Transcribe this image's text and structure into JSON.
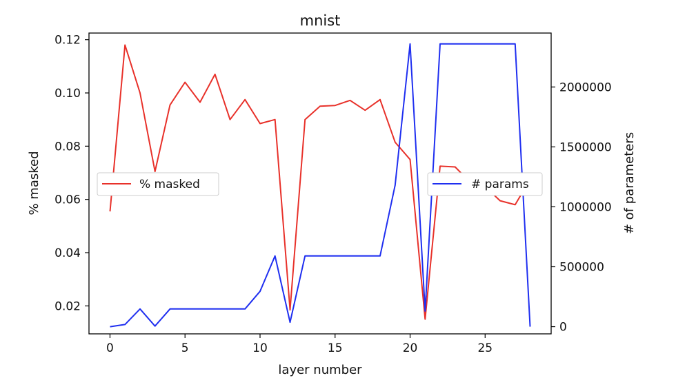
{
  "chart_data": {
    "type": "line",
    "title": "mnist",
    "xlabel": "layer number",
    "ylabel_left": "% masked",
    "ylabel_right": "# of parameters",
    "xlim": [
      -1.4,
      29.4
    ],
    "ylim_left": [
      0.0095,
      0.1225
    ],
    "ylim_right": [
      -60000,
      2450000
    ],
    "x_ticks": [
      0,
      5,
      10,
      15,
      20,
      25
    ],
    "y_left_ticks": [
      "0.02",
      "0.04",
      "0.06",
      "0.08",
      "0.10",
      "0.12"
    ],
    "y_right_ticks": [
      "0",
      "500000",
      "1000000",
      "1500000",
      "2000000"
    ],
    "grid": false,
    "series": [
      {
        "name": "% masked",
        "axis": "left",
        "color": "#e8312a",
        "legend_position": "center-left",
        "x": [
          0,
          1,
          2,
          3,
          4,
          5,
          6,
          7,
          8,
          9,
          10,
          11,
          12,
          13,
          14,
          15,
          16,
          17,
          18,
          19,
          20,
          21,
          22,
          23,
          24,
          25,
          26,
          27,
          28
        ],
        "values": [
          0.0555,
          0.118,
          0.1,
          0.0705,
          0.0955,
          0.104,
          0.0965,
          0.107,
          0.09,
          0.0975,
          0.0885,
          0.09,
          0.0185,
          0.09,
          0.095,
          0.0953,
          0.0972,
          0.0935,
          0.0975,
          0.0815,
          0.075,
          0.015,
          0.0725,
          0.0722,
          0.0665,
          0.0648,
          0.0595,
          0.058,
          0.0675
        ]
      },
      {
        "name": "# params",
        "axis": "right",
        "color": "#1f2ff0",
        "legend_position": "center-right",
        "x": [
          0,
          1,
          2,
          3,
          4,
          5,
          6,
          7,
          8,
          9,
          10,
          11,
          12,
          13,
          14,
          15,
          16,
          17,
          18,
          19,
          20,
          21,
          22,
          23,
          24,
          25,
          26,
          27,
          28
        ],
        "values": [
          0,
          18000,
          148000,
          5000,
          148000,
          148000,
          148000,
          148000,
          148000,
          148000,
          295000,
          590000,
          37000,
          590000,
          590000,
          590000,
          590000,
          590000,
          590000,
          1180000,
          2360000,
          130000,
          2360000,
          2360000,
          2360000,
          2360000,
          2360000,
          2360000,
          0
        ]
      }
    ]
  }
}
